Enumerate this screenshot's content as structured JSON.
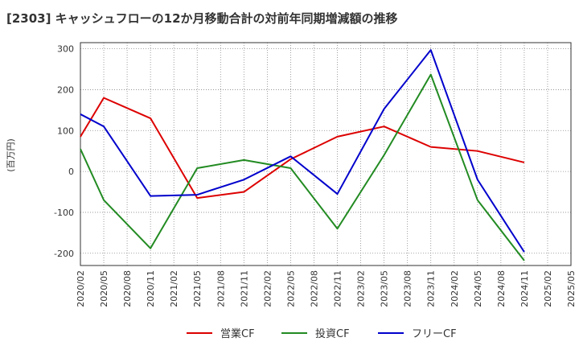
{
  "chart_data": {
    "type": "line",
    "title": "[2303]  キャッシュフローの12か月移動合計の対前年同期増減額の推移",
    "xlabel": "",
    "ylabel": "(百万円)",
    "ylim": [
      -230,
      315
    ],
    "yticks": [
      300,
      200,
      100,
      0,
      -100,
      -200
    ],
    "ytick_labels": [
      "300",
      "200",
      "100",
      "0",
      "-100",
      "-200"
    ],
    "x": [
      "2020/02",
      "2020/05",
      "2020/08",
      "2020/11",
      "2021/02",
      "2021/05",
      "2021/08",
      "2021/11",
      "2022/02",
      "2022/05",
      "2022/08",
      "2022/11",
      "2023/02",
      "2023/05",
      "2023/08",
      "2023/11",
      "2024/02",
      "2024/05",
      "2024/08",
      "2024/11",
      "2025/02",
      "2025/05"
    ],
    "grid": true,
    "legend_position": "bottom",
    "series": [
      {
        "name": "営業CF",
        "color": "#dd0000",
        "values": [
          85,
          180,
          null,
          130,
          null,
          -65,
          null,
          -50,
          null,
          30,
          null,
          85,
          null,
          110,
          null,
          60,
          null,
          50,
          null,
          22,
          null,
          null
        ]
      },
      {
        "name": "投資CF",
        "color": "#228b22",
        "values": [
          55,
          -70,
          null,
          -188,
          null,
          8,
          null,
          28,
          null,
          8,
          null,
          -140,
          null,
          40,
          null,
          237,
          null,
          -70,
          null,
          -218,
          null,
          null
        ]
      },
      {
        "name": "フリーCF",
        "color": "#0000cc",
        "values": [
          140,
          110,
          null,
          -60,
          null,
          -57,
          null,
          -20,
          null,
          37,
          null,
          -55,
          null,
          153,
          null,
          297,
          null,
          -20,
          null,
          -197,
          null,
          null
        ]
      }
    ]
  }
}
